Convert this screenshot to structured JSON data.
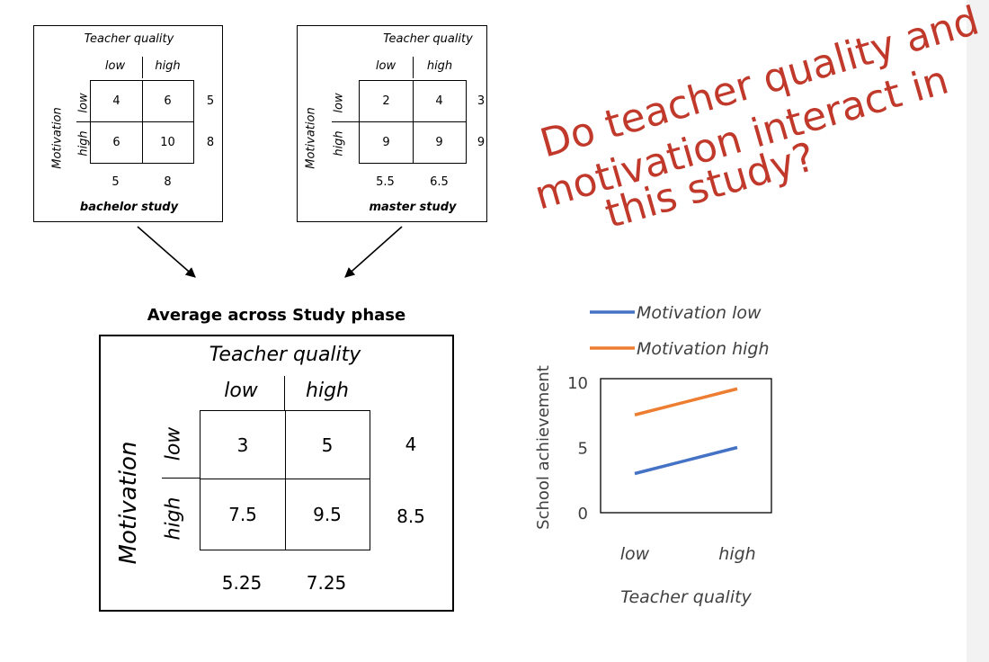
{
  "bachelor": {
    "title": "Teacher quality",
    "col_low": "low",
    "col_high": "high",
    "row_label": "Motivation",
    "row_low": "low",
    "row_high": "high",
    "cells": [
      "4",
      "6",
      "6",
      "10"
    ],
    "row_means": [
      "5",
      "8"
    ],
    "col_means": [
      "5",
      "8"
    ],
    "caption": "bachelor study"
  },
  "master": {
    "title": "Teacher quality",
    "col_low": "low",
    "col_high": "high",
    "row_label": "Motivation",
    "row_low": "low",
    "row_high": "high",
    "cells": [
      "2",
      "4",
      "9",
      "9"
    ],
    "row_means": [
      "3",
      "9"
    ],
    "col_means": [
      "5.5",
      "6.5"
    ],
    "caption": "master study"
  },
  "average": {
    "heading": "Average across Study phase",
    "title": "Teacher quality",
    "col_low": "low",
    "col_high": "high",
    "row_label": "Motivation",
    "row_low": "low",
    "row_high": "high",
    "cells": [
      "3",
      "5",
      "7.5",
      "9.5"
    ],
    "row_means": [
      "4",
      "8.5"
    ],
    "col_means": [
      "5.25",
      "7.25"
    ]
  },
  "question": {
    "line1": "Do teacher quality and",
    "line2": "motivation interact in",
    "line3": "this study?"
  },
  "colors": {
    "question": "#c0392b",
    "motivation_low": "#4472c4",
    "motivation_high": "#ed7d31"
  },
  "chart_data": {
    "type": "line",
    "categories": [
      "low",
      "high"
    ],
    "series": [
      {
        "name": "Motivation low",
        "values": [
          3,
          5
        ],
        "color": "#4472c4"
      },
      {
        "name": "Motivation high",
        "values": [
          7.5,
          9.5
        ],
        "color": "#ed7d31"
      }
    ],
    "ylim": [
      0,
      10
    ],
    "yticks": [
      "0",
      "5",
      "10"
    ],
    "ylabel": "School achievement",
    "xlabel": "Teacher quality",
    "legend": "top"
  }
}
